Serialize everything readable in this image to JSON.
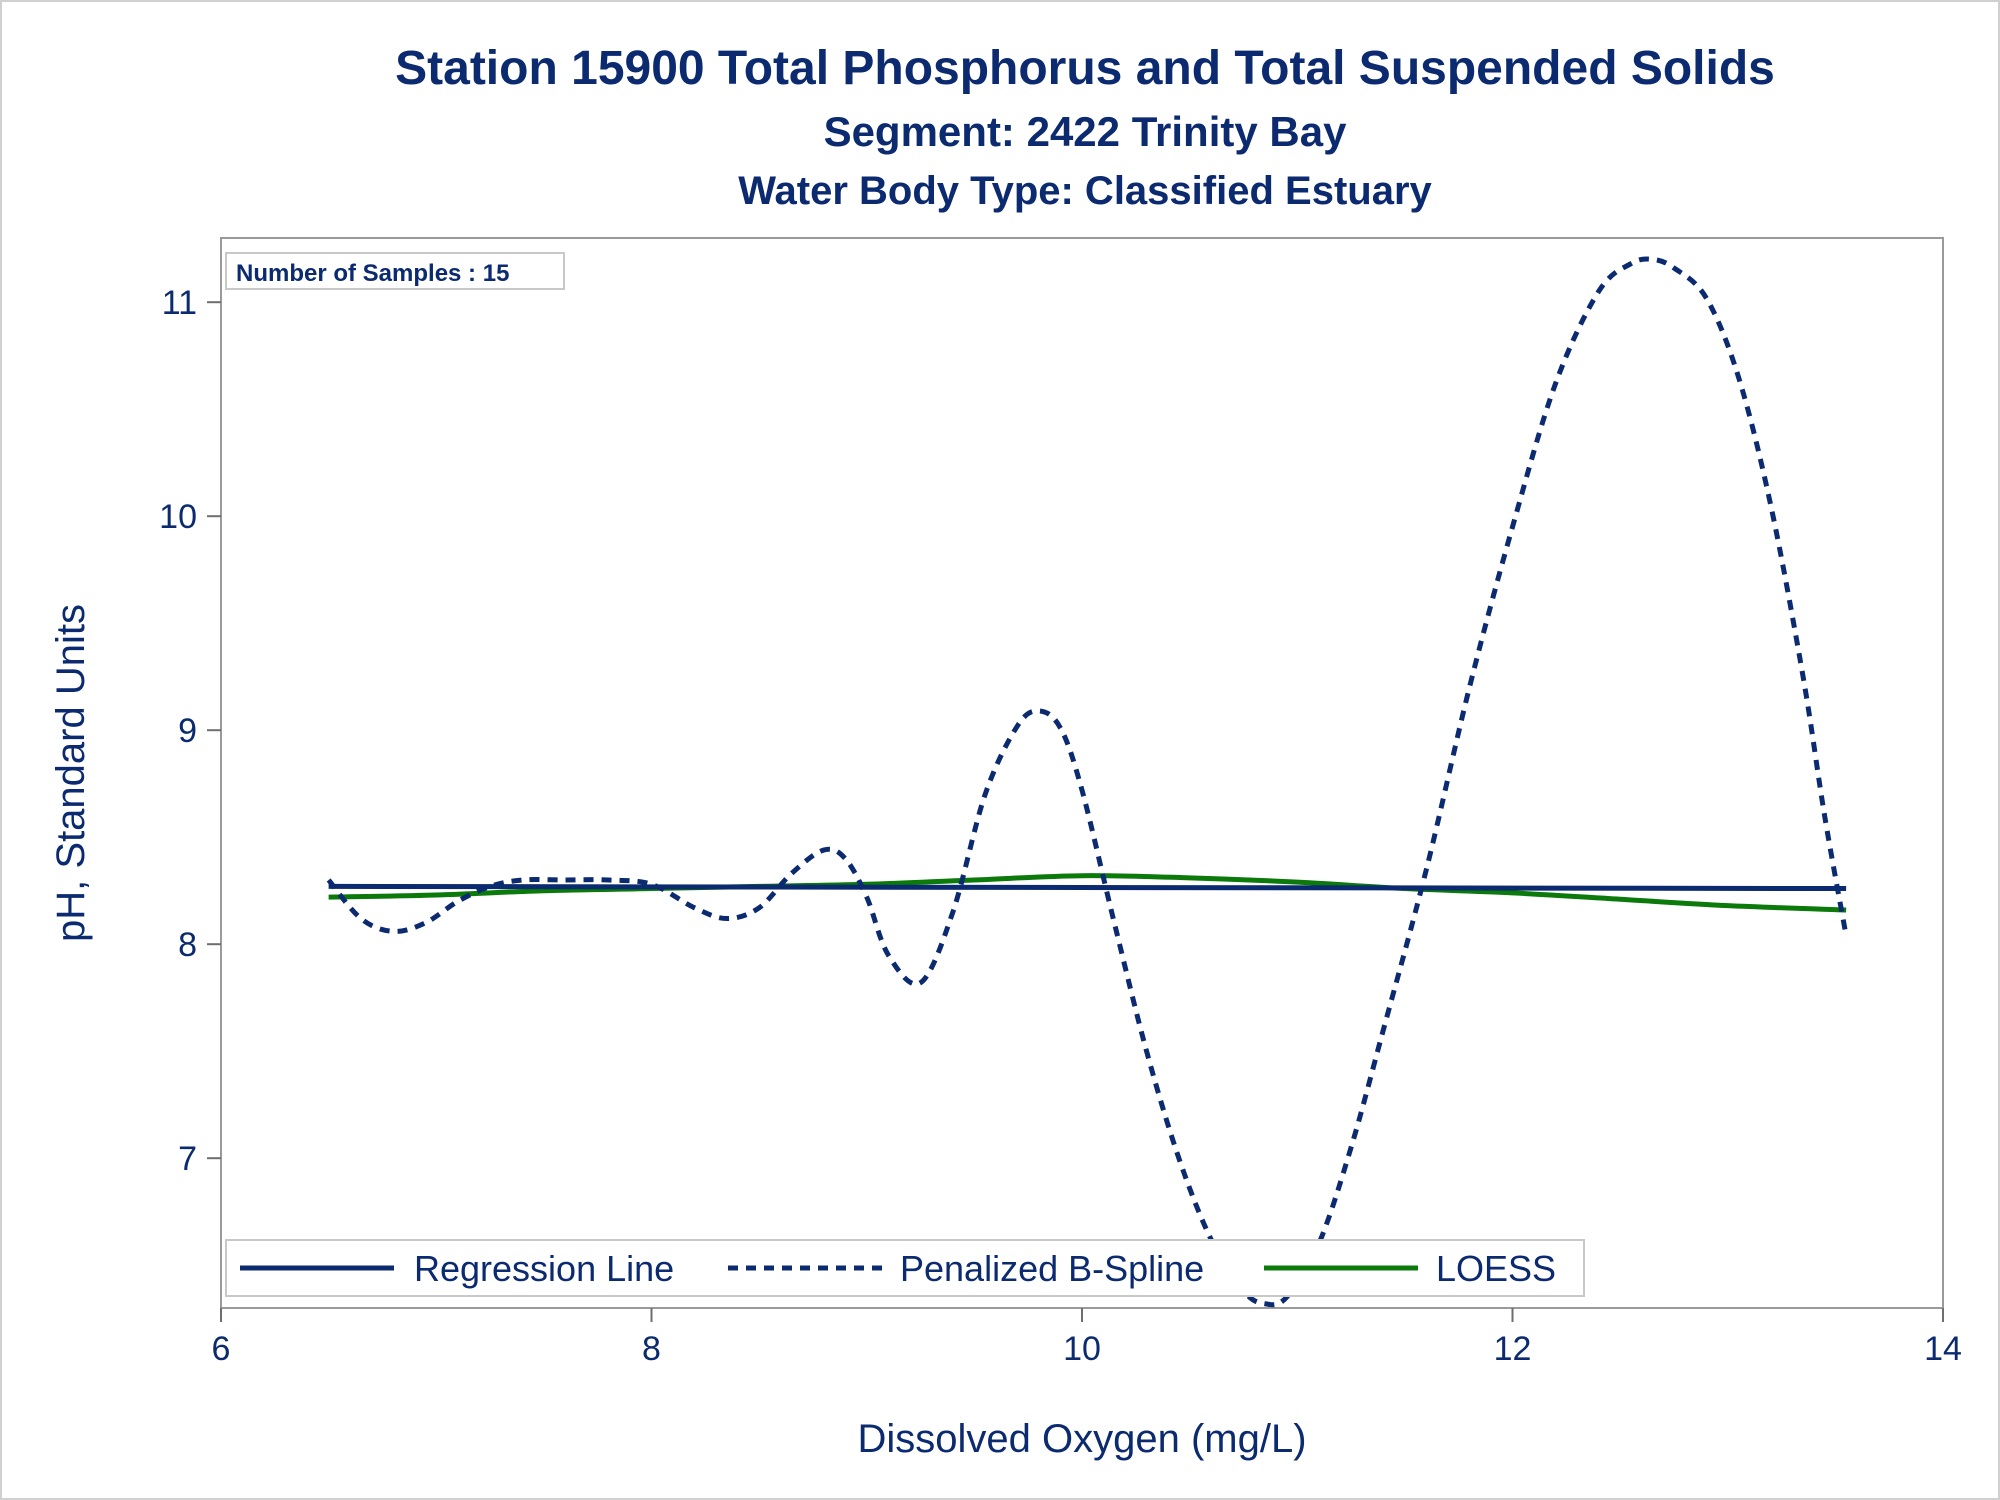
{
  "chart_data": {
    "type": "line",
    "title": "Station 15900  Total Phosphorus and Total Suspended Solids",
    "subtitle": "Segment: 2422  Trinity Bay",
    "subtitle2": "Water Body Type: Classified Estuary",
    "xlabel": "Dissolved Oxygen (mg/L)",
    "ylabel": "pH, Standard Units",
    "xlim": [
      6,
      14
    ],
    "ylim": [
      6.3,
      11.3
    ],
    "xticks": [
      "6",
      "8",
      "10",
      "12",
      "14"
    ],
    "yticks": [
      "7",
      "8",
      "9",
      "10",
      "11"
    ],
    "grid": false,
    "inset_text": "Number of Samples : 15",
    "legend_position": "bottom-inside",
    "series": [
      {
        "name": "Regression Line",
        "style": "solid",
        "color": "#0b2a6f",
        "x": [
          6.5,
          13.55
        ],
        "y": [
          8.27,
          8.26
        ]
      },
      {
        "name": "Penalized B-Spline",
        "style": "dashed",
        "color": "#0b2a6f",
        "x": [
          6.5,
          6.65,
          6.8,
          6.95,
          7.1,
          7.25,
          7.4,
          7.6,
          7.8,
          8.0,
          8.2,
          8.35,
          8.5,
          8.65,
          8.8,
          8.9,
          9.0,
          9.1,
          9.25,
          9.4,
          9.55,
          9.7,
          9.8,
          9.9,
          10.0,
          10.15,
          10.3,
          10.45,
          10.6,
          10.75,
          10.85,
          10.95,
          11.1,
          11.25,
          11.4,
          11.6,
          11.8,
          12.0,
          12.2,
          12.4,
          12.55,
          12.65,
          12.75,
          12.9,
          13.05,
          13.2,
          13.35,
          13.45,
          13.55
        ],
        "y": [
          8.3,
          8.12,
          8.06,
          8.1,
          8.2,
          8.27,
          8.3,
          8.3,
          8.3,
          8.28,
          8.17,
          8.12,
          8.17,
          8.33,
          8.44,
          8.4,
          8.22,
          7.95,
          7.82,
          8.15,
          8.7,
          9.02,
          9.09,
          9.01,
          8.72,
          8.1,
          7.5,
          7.0,
          6.62,
          6.38,
          6.32,
          6.35,
          6.6,
          7.05,
          7.6,
          8.35,
          9.2,
          9.95,
          10.62,
          11.05,
          11.18,
          11.2,
          11.16,
          11.02,
          10.65,
          10.05,
          9.25,
          8.6,
          8.04
        ]
      },
      {
        "name": "LOESS",
        "style": "solid",
        "color": "#0b7a0b",
        "x": [
          6.5,
          7.0,
          7.5,
          8.0,
          8.5,
          9.0,
          9.5,
          10.0,
          10.5,
          11.0,
          11.5,
          12.0,
          12.5,
          13.0,
          13.55
        ],
        "y": [
          8.22,
          8.23,
          8.25,
          8.26,
          8.27,
          8.28,
          8.3,
          8.32,
          8.31,
          8.29,
          8.26,
          8.24,
          8.21,
          8.18,
          8.16
        ]
      }
    ]
  }
}
